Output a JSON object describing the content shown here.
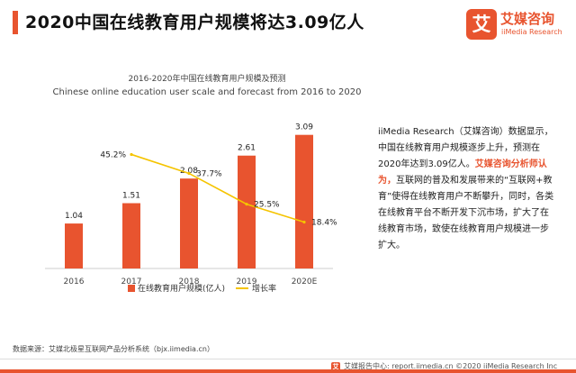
{
  "header": {
    "title": "2020中国在线教育用户规模将达3.09亿人"
  },
  "brand": {
    "badge_char": "艾",
    "name_cn": "艾媒咨询",
    "name_en": "iiMedia Research",
    "color": "#e8542f"
  },
  "chart_data": {
    "type": "bar",
    "title": "2016-2020年中国在线教育用户规模及预测",
    "subtitle": "Chinese online education user scale and forecast from 2016 to 2020",
    "categories": [
      "2016",
      "2017",
      "2018",
      "2019",
      "2020E"
    ],
    "series": [
      {
        "name": "在线教育用户规模(亿人)",
        "type": "bar",
        "values": [
          1.04,
          1.51,
          2.08,
          2.61,
          3.09
        ],
        "labels": [
          "1.04",
          "1.51",
          "2.08",
          "2.61",
          "3.09"
        ],
        "color": "#e8542f"
      },
      {
        "name": "增长率",
        "type": "line",
        "values": [
          null,
          45.2,
          37.7,
          25.5,
          18.4
        ],
        "labels": [
          "",
          "45.2%",
          "37.7%",
          "25.5%",
          "18.4%"
        ],
        "color": "#f5c400"
      }
    ],
    "ylim": [
      0,
      3.5
    ],
    "y2lim": [
      0,
      60
    ],
    "legend": "bottom",
    "grid": false
  },
  "description": {
    "part1": "iiMedia Research（艾媒咨询）数据显示，中国在线教育用户规模逐步上升，预测在2020年达到3.09亿人。",
    "highlight": "艾媒咨询分析师认为，",
    "part2": "互联网的普及和发展带来的“互联网+教育”使得在线教育用户不断攀升，同时，各类在线教育平台不断开发下沉市场，扩大了在线教育市场，致使在线教育用户规模进一步扩大。"
  },
  "source": "数据来源：艾媒北极星互联网产品分析系统（bjx.iimedia.cn）",
  "footer": {
    "logo_char": "艾",
    "text": "艾媒报告中心: report.iimedia.cn  ©2020 iiMedia Research  Inc"
  }
}
